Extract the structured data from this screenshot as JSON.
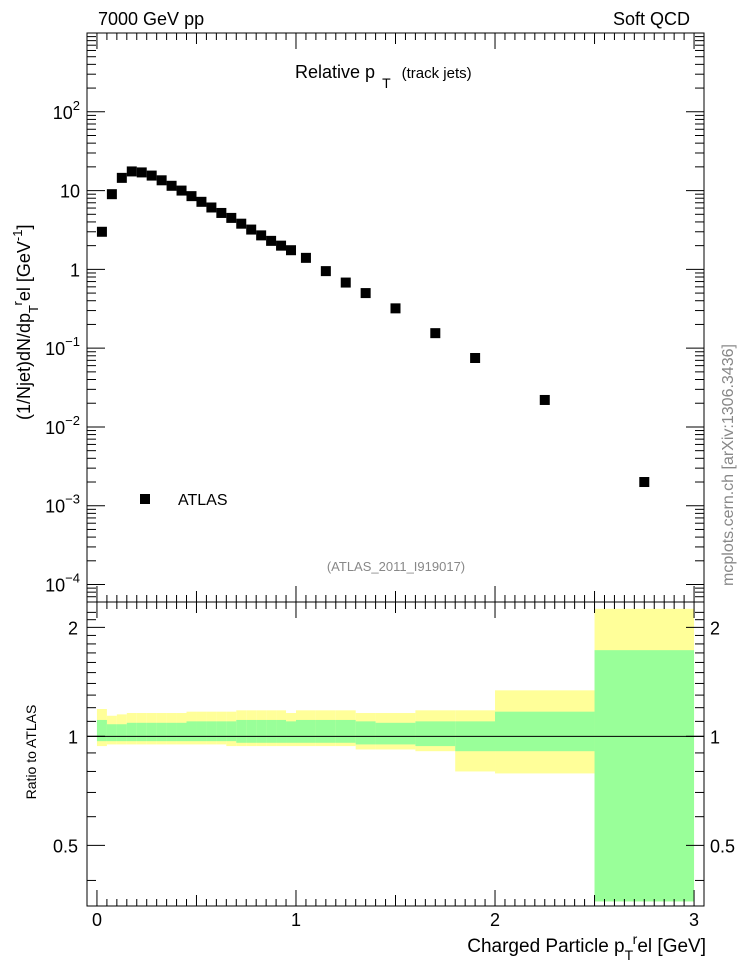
{
  "header": {
    "left": "7000 GeV pp",
    "right": "Soft QCD"
  },
  "side_label": "mcplots.cern.ch [arXiv:1306.3436]",
  "chart_data": [
    {
      "type": "scatter",
      "title_main": "Relative p",
      "title_sub": "T",
      "title_extra": "(track jets)",
      "reference": "(ATLAS_2011_I919017)",
      "ylabel": "(1/Njet)dN/dp_T^rel [GeV^-1]",
      "ylabel_parts": {
        "a": "(1/Njet)dN/dp",
        "b": "T",
        "c": "r",
        "d": "el [GeV",
        "e": "-1",
        "f": "]"
      },
      "yscale": "log",
      "ylim": [
        6e-05,
        1000
      ],
      "xlim": [
        -0.05,
        3.05
      ],
      "yticks": [
        {
          "value": 100,
          "base": "10",
          "exp": "2"
        },
        {
          "value": 10,
          "base": "10",
          "exp": ""
        },
        {
          "value": 1,
          "base": "1",
          "exp": ""
        },
        {
          "value": 0.1,
          "base": "10",
          "exp": "−1"
        },
        {
          "value": 0.01,
          "base": "10",
          "exp": "−2"
        },
        {
          "value": 0.001,
          "base": "10",
          "exp": "−3"
        },
        {
          "value": 0.0001,
          "base": "10",
          "exp": "−4"
        }
      ],
      "legend": {
        "label": "ATLAS",
        "position": "bottom-left"
      },
      "series": [
        {
          "name": "ATLAS",
          "marker": "square",
          "color": "#000000",
          "x": [
            0.025,
            0.075,
            0.125,
            0.175,
            0.225,
            0.275,
            0.325,
            0.375,
            0.425,
            0.475,
            0.525,
            0.575,
            0.625,
            0.675,
            0.725,
            0.775,
            0.825,
            0.875,
            0.925,
            0.975,
            1.05,
            1.15,
            1.25,
            1.35,
            1.5,
            1.7,
            1.9,
            2.25,
            2.75
          ],
          "y": [
            3.0,
            9.0,
            14.5,
            17.5,
            17.0,
            15.5,
            13.5,
            11.5,
            10.0,
            8.5,
            7.2,
            6.1,
            5.2,
            4.5,
            3.8,
            3.2,
            2.7,
            2.3,
            2.0,
            1.75,
            1.4,
            0.95,
            0.68,
            0.5,
            0.32,
            0.155,
            0.075,
            0.022,
            0.002
          ]
        }
      ]
    },
    {
      "type": "area",
      "ylabel": "Ratio to ATLAS",
      "xlabel": "Charged Particle p_T^rel [GeV]",
      "xlabel_parts": {
        "a": "Charged Particle p",
        "b": "T",
        "c": "r",
        "d": "el [GeV]"
      },
      "yscale": "log",
      "ylim": [
        0.34,
        2.35
      ],
      "xlim": [
        -0.05,
        3.05
      ],
      "xticks": [
        "0",
        "1",
        "2",
        "3"
      ],
      "yticks": [
        "0.5",
        "1",
        "2"
      ],
      "reference_line": 1,
      "bin_edges": [
        0,
        0.05,
        0.1,
        0.15,
        0.2,
        0.25,
        0.3,
        0.35,
        0.4,
        0.45,
        0.5,
        0.55,
        0.6,
        0.65,
        0.7,
        0.75,
        0.8,
        0.85,
        0.9,
        0.95,
        1.0,
        1.1,
        1.2,
        1.3,
        1.4,
        1.6,
        1.8,
        2.0,
        2.5,
        3.0
      ],
      "stat_band": {
        "color": "#99ff99",
        "up": [
          1.11,
          1.08,
          1.08,
          1.09,
          1.09,
          1.09,
          1.09,
          1.09,
          1.09,
          1.1,
          1.1,
          1.1,
          1.1,
          1.1,
          1.11,
          1.11,
          1.11,
          1.11,
          1.11,
          1.1,
          1.11,
          1.11,
          1.11,
          1.1,
          1.09,
          1.1,
          1.1,
          1.17,
          1.73
        ],
        "down": [
          0.97,
          0.97,
          0.97,
          0.97,
          0.97,
          0.97,
          0.97,
          0.97,
          0.97,
          0.97,
          0.97,
          0.97,
          0.97,
          0.97,
          0.96,
          0.96,
          0.96,
          0.96,
          0.96,
          0.96,
          0.96,
          0.96,
          0.96,
          0.95,
          0.95,
          0.94,
          0.91,
          0.91,
          0.35
        ]
      },
      "total_band": {
        "color": "#ffff99",
        "up": [
          1.19,
          1.14,
          1.15,
          1.16,
          1.16,
          1.16,
          1.16,
          1.16,
          1.16,
          1.17,
          1.17,
          1.17,
          1.17,
          1.17,
          1.18,
          1.18,
          1.18,
          1.18,
          1.18,
          1.16,
          1.18,
          1.18,
          1.18,
          1.16,
          1.16,
          1.18,
          1.18,
          1.34,
          2.25
        ],
        "down": [
          0.94,
          0.95,
          0.95,
          0.95,
          0.95,
          0.95,
          0.95,
          0.95,
          0.95,
          0.95,
          0.95,
          0.95,
          0.95,
          0.94,
          0.94,
          0.94,
          0.94,
          0.94,
          0.94,
          0.94,
          0.94,
          0.94,
          0.94,
          0.92,
          0.92,
          0.91,
          0.8,
          0.79,
          0.35
        ]
      }
    }
  ]
}
